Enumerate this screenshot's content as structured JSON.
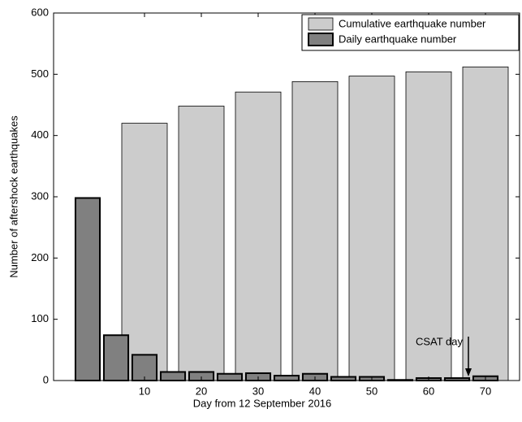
{
  "chart_data": {
    "type": "bar",
    "xlabel": "Day from 12 September 2016",
    "ylabel": "Number of aftershock earthquakes",
    "xlim": [
      -6,
      76
    ],
    "ylim": [
      0,
      600
    ],
    "xticks": [
      10,
      20,
      30,
      40,
      50,
      60,
      70
    ],
    "yticks": [
      0,
      100,
      200,
      300,
      400,
      500,
      600
    ],
    "legend": "upper right",
    "series": [
      {
        "name": "Cumulative earthquake number",
        "color": "#cccccc",
        "x": [
          10,
          20,
          30,
          40,
          50,
          60,
          70
        ],
        "values": [
          420,
          448,
          471,
          488,
          497,
          504,
          512
        ]
      },
      {
        "name": "Daily earthquake number",
        "color": "#808080",
        "x": [
          0,
          5,
          10,
          15,
          20,
          25,
          30,
          35,
          40,
          45,
          50,
          55,
          60,
          65,
          70
        ],
        "values": [
          298,
          74,
          42,
          14,
          14,
          11,
          12,
          8,
          11,
          6,
          6,
          1,
          4,
          4,
          7
        ]
      }
    ],
    "annotations": [
      {
        "text": "CSAT day",
        "x": 67
      }
    ]
  }
}
